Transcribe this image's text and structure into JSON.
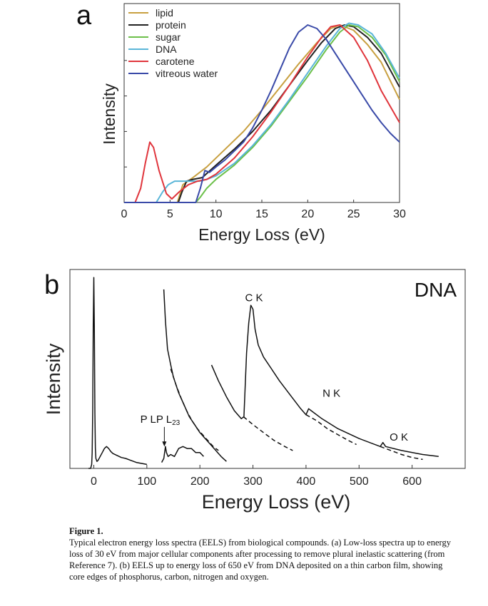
{
  "chart_data": [
    {
      "type": "line",
      "panel_label": "a",
      "xlabel": "Energy Loss (eV)",
      "ylabel": "Intensity",
      "xlim": [
        0,
        30
      ],
      "ylim": [
        0,
        1
      ],
      "xticks": [
        0,
        5,
        10,
        15,
        20,
        25,
        30
      ],
      "grid": false,
      "legend_position": "top-left",
      "series": [
        {
          "name": "lipid",
          "color": "#c8a040",
          "x": [
            0,
            5.8,
            6.4,
            7.5,
            9,
            11,
            13,
            15,
            17,
            19,
            21,
            22.5,
            23.5,
            25,
            26.5,
            28,
            30
          ],
          "y": [
            0,
            0,
            0.1,
            0.14,
            0.2,
            0.3,
            0.4,
            0.52,
            0.65,
            0.78,
            0.9,
            0.98,
            1.0,
            0.97,
            0.89,
            0.79,
            0.58
          ]
        },
        {
          "name": "protein",
          "color": "#222222",
          "x": [
            0,
            5.9,
            6.3,
            6.8,
            7.5,
            8.5,
            10,
            12,
            14,
            16,
            18,
            20,
            21.5,
            23,
            24,
            25,
            26.5,
            28,
            30
          ],
          "y": [
            0,
            0,
            0.06,
            0.12,
            0.13,
            0.14,
            0.21,
            0.3,
            0.4,
            0.52,
            0.66,
            0.8,
            0.9,
            0.98,
            1.0,
            0.99,
            0.93,
            0.84,
            0.65
          ]
        },
        {
          "name": "sugar",
          "color": "#6cc04a",
          "x": [
            0,
            7.8,
            8.3,
            9,
            10,
            11,
            12,
            14,
            16,
            18,
            20,
            22,
            23.5,
            24.5,
            25.5,
            27,
            28.5,
            30
          ],
          "y": [
            0,
            0,
            0.03,
            0.08,
            0.13,
            0.17,
            0.21,
            0.31,
            0.43,
            0.57,
            0.71,
            0.86,
            0.96,
            1.0,
            0.99,
            0.93,
            0.83,
            0.68
          ]
        },
        {
          "name": "DNA",
          "color": "#5ab6d8",
          "x": [
            0,
            3.5,
            4.2,
            4.8,
            5.5,
            6.5,
            7.5,
            8.2,
            9,
            10,
            12,
            14,
            16,
            18,
            20,
            22,
            23.5,
            24.5,
            25.5,
            27,
            28.5,
            30
          ],
          "y": [
            0,
            0,
            0.06,
            0.1,
            0.12,
            0.12,
            0.12,
            0.12,
            0.13,
            0.15,
            0.22,
            0.32,
            0.44,
            0.58,
            0.73,
            0.88,
            0.98,
            1.01,
            1.0,
            0.95,
            0.84,
            0.7
          ]
        },
        {
          "name": "carotene",
          "color": "#e0353c",
          "x": [
            0,
            1.2,
            1.8,
            2.3,
            2.8,
            3.2,
            3.8,
            4.6,
            5.2,
            6,
            7,
            8,
            9,
            10,
            12,
            14,
            16,
            18,
            20,
            21.5,
            22.5,
            23.5,
            25,
            26.5,
            28,
            30
          ],
          "y": [
            0,
            0,
            0.08,
            0.22,
            0.34,
            0.31,
            0.18,
            0.05,
            0.02,
            0.06,
            0.1,
            0.12,
            0.13,
            0.16,
            0.25,
            0.37,
            0.51,
            0.66,
            0.82,
            0.93,
            0.99,
            1.0,
            0.93,
            0.8,
            0.63,
            0.45
          ]
        },
        {
          "name": "vitreous water",
          "color": "#3a4aa8",
          "x": [
            0,
            7.8,
            8.3,
            8.8,
            9.3,
            10,
            11,
            12,
            13,
            14,
            15,
            16,
            17,
            18,
            19,
            20,
            21,
            22,
            23,
            24,
            25,
            26,
            27,
            28,
            29,
            30
          ],
          "y": [
            0,
            0,
            0.08,
            0.18,
            0.17,
            0.2,
            0.24,
            0.29,
            0.34,
            0.42,
            0.52,
            0.63,
            0.75,
            0.87,
            0.96,
            1.0,
            0.98,
            0.92,
            0.84,
            0.76,
            0.68,
            0.6,
            0.52,
            0.45,
            0.39,
            0.34
          ]
        }
      ]
    },
    {
      "type": "line",
      "panel_label": "b",
      "title": "DNA",
      "xlabel": "Energy Loss (eV)",
      "ylabel": "Intensity",
      "xlim": [
        -45,
        700
      ],
      "ylim": [
        0,
        1
      ],
      "xticks": [
        0,
        100,
        200,
        300,
        400,
        500,
        600
      ],
      "grid": false,
      "annotations": [
        {
          "text": "P L",
          "sub": "23",
          "x": 125,
          "y": 0.23,
          "arrow_to": [
            133,
            0.11
          ]
        },
        {
          "text": "C  K",
          "x": 302,
          "y": 0.84
        },
        {
          "text": "N  K",
          "x": 448,
          "y": 0.36
        },
        {
          "text": "O  K",
          "x": 575,
          "y": 0.14
        }
      ],
      "series": [
        {
          "style": "solid",
          "x": [
            -10,
            -6,
            -4,
            -3,
            -2,
            -1,
            0,
            1,
            2,
            3,
            4,
            6,
            8,
            12,
            16,
            20,
            24,
            28,
            32,
            36,
            44,
            52,
            60,
            70,
            80,
            90,
            100
          ],
          "y": [
            0,
            0,
            0.02,
            0.08,
            0.3,
            0.72,
            0.96,
            0.72,
            0.28,
            0.1,
            0.05,
            0.035,
            0.04,
            0.06,
            0.08,
            0.1,
            0.11,
            0.1,
            0.085,
            0.075,
            0.065,
            0.055,
            0.05,
            0.04,
            0.03,
            0.025,
            0.02
          ]
        },
        {
          "style": "solid",
          "x": [
            128,
            132,
            135,
            137,
            140,
            145,
            152,
            160,
            168,
            176,
            184,
            192,
            200,
            207
          ],
          "y": [
            0.03,
            0.05,
            0.11,
            0.08,
            0.06,
            0.07,
            0.06,
            0.1,
            0.11,
            0.1,
            0.1,
            0.08,
            0.08,
            0.06
          ]
        },
        {
          "style": "solid",
          "x": [
            132,
            135,
            139,
            145,
            150,
            160,
            170,
            180,
            190,
            200,
            210,
            220,
            230,
            240,
            250
          ],
          "y": [
            0.9,
            0.74,
            0.6,
            0.52,
            0.46,
            0.38,
            0.32,
            0.26,
            0.22,
            0.18,
            0.15,
            0.12,
            0.09,
            0.06,
            0.035
          ]
        },
        {
          "style": "dashed",
          "x": [
            145,
            155,
            165,
            175,
            185,
            195,
            205,
            215,
            225,
            235
          ],
          "y": [
            0.5,
            0.42,
            0.35,
            0.29,
            0.24,
            0.2,
            0.17,
            0.14,
            0.11,
            0.09
          ]
        },
        {
          "style": "solid",
          "x": [
            222,
            235,
            250,
            265,
            278,
            283,
            285,
            288,
            292,
            296,
            300,
            304,
            310,
            320,
            335,
            350,
            370,
            390,
            400,
            405,
            410,
            430,
            460,
            500,
            540,
            545,
            550,
            580,
            620,
            650
          ],
          "y": [
            0.52,
            0.44,
            0.36,
            0.29,
            0.25,
            0.26,
            0.39,
            0.58,
            0.73,
            0.82,
            0.8,
            0.7,
            0.62,
            0.56,
            0.5,
            0.44,
            0.37,
            0.3,
            0.27,
            0.3,
            0.29,
            0.25,
            0.2,
            0.15,
            0.11,
            0.13,
            0.11,
            0.09,
            0.07,
            0.06
          ]
        },
        {
          "style": "dashed",
          "x": [
            282,
            300,
            320,
            340,
            360,
            375
          ],
          "y": [
            0.26,
            0.22,
            0.18,
            0.14,
            0.11,
            0.09
          ]
        },
        {
          "style": "dashed",
          "x": [
            400,
            420,
            440,
            460,
            480,
            495
          ],
          "y": [
            0.27,
            0.24,
            0.2,
            0.17,
            0.14,
            0.12
          ]
        },
        {
          "style": "dashed",
          "x": [
            540,
            560,
            580,
            600,
            620
          ],
          "y": [
            0.11,
            0.09,
            0.07,
            0.055,
            0.045
          ]
        }
      ]
    }
  ],
  "caption": {
    "label": "Figure 1.",
    "text": "Typical electron energy loss spectra (EELS) from biological compounds. (a) Low-loss spectra up to energy loss of 30 eV from major cellular components after processing to remove plural inelastic scattering (from Reference 7). (b) EELS up to energy loss of 650 eV from DNA deposited on a thin carbon film, showing core edges of phosphorus, carbon, nitrogen and oxygen."
  }
}
